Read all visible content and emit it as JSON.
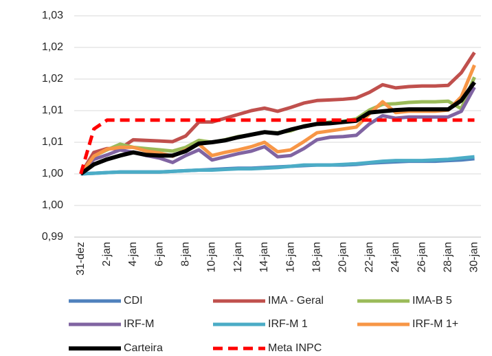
{
  "chart_data": {
    "type": "line",
    "categories": [
      "31-dez",
      null,
      "2-jan",
      null,
      "4-jan",
      null,
      "6-jan",
      null,
      "8-jan",
      null,
      "10-jan",
      null,
      "12-jan",
      null,
      "14-jan",
      null,
      "16-jan",
      null,
      "18-jan",
      null,
      "20-jan",
      null,
      "22-jan",
      null,
      "24-jan",
      null,
      "26-jan",
      null,
      "28-jan",
      null,
      "30-jan"
    ],
    "ylim": [
      0.99,
      1.025
    ],
    "yticks": [
      {
        "value": 0.99,
        "label": "0,99"
      },
      {
        "value": 0.995,
        "label": "1,00"
      },
      {
        "value": 1.0,
        "label": "1,00"
      },
      {
        "value": 1.005,
        "label": "1,01"
      },
      {
        "value": 1.01,
        "label": "1,01"
      },
      {
        "value": 1.015,
        "label": "1,02"
      },
      {
        "value": 1.02,
        "label": "1,02"
      },
      {
        "value": 1.025,
        "label": "1,03"
      }
    ],
    "grid": true,
    "legend": "bottom",
    "series": [
      {
        "name": "CDI",
        "color": "#4f81bd",
        "style": "solid",
        "values": [
          1.0,
          1.0001,
          1.0002,
          1.0003,
          1.0003,
          1.0003,
          1.0003,
          1.0004,
          1.0005,
          1.0006,
          1.0007,
          1.0008,
          1.0009,
          1.0009,
          1.001,
          1.0011,
          1.0012,
          1.0013,
          1.0014,
          1.0014,
          1.0014,
          1.0015,
          1.0017,
          1.0018,
          1.0019,
          1.002,
          1.002,
          1.002,
          1.0021,
          1.0022,
          1.0024
        ]
      },
      {
        "name": "IMA - Geral",
        "color": "#c0504d",
        "style": "solid",
        "values": [
          1.0,
          1.0034,
          1.004,
          1.004,
          1.0054,
          1.0053,
          1.0052,
          1.0051,
          1.006,
          1.0082,
          1.0082,
          1.0088,
          1.0094,
          1.01,
          1.0104,
          1.0099,
          1.0105,
          1.0112,
          1.0116,
          1.0117,
          1.0118,
          1.012,
          1.0129,
          1.0141,
          1.0136,
          1.0138,
          1.0139,
          1.0139,
          1.014,
          1.016,
          1.0192
        ]
      },
      {
        "name": "IMA-B 5",
        "color": "#9bbb59",
        "style": "solid",
        "values": [
          1.0,
          1.0028,
          1.0038,
          1.0047,
          1.0042,
          1.004,
          1.0038,
          1.0036,
          1.0042,
          1.0053,
          1.005,
          1.0054,
          1.0059,
          1.0062,
          1.0066,
          1.0065,
          1.0068,
          1.0076,
          1.0079,
          1.0082,
          1.0083,
          1.0087,
          1.0101,
          1.011,
          1.0111,
          1.0113,
          1.0114,
          1.0114,
          1.0115,
          1.0103,
          1.0153
        ]
      },
      {
        "name": "IRF-M",
        "color": "#8064a2",
        "style": "solid",
        "values": [
          1.0,
          1.0023,
          1.003,
          1.0038,
          1.0034,
          1.0029,
          1.0025,
          1.0018,
          1.0029,
          1.0038,
          1.0022,
          1.0027,
          1.0032,
          1.0036,
          1.0043,
          1.0027,
          1.0029,
          1.004,
          1.0054,
          1.0058,
          1.0059,
          1.0061,
          1.0079,
          1.0092,
          1.0088,
          1.009,
          1.009,
          1.009,
          1.009,
          1.0099,
          1.0137
        ]
      },
      {
        "name": "IRF-M 1",
        "color": "#4bacc6",
        "style": "solid",
        "values": [
          1.0,
          1.0001,
          1.0002,
          1.0003,
          1.0003,
          1.0003,
          1.0003,
          1.0004,
          1.0005,
          1.0006,
          1.0006,
          1.0007,
          1.0008,
          1.0008,
          1.0009,
          1.001,
          1.0012,
          1.0014,
          1.0014,
          1.0014,
          1.0015,
          1.0016,
          1.0018,
          1.002,
          1.0021,
          1.0021,
          1.0021,
          1.0022,
          1.0023,
          1.0025,
          1.0027
        ]
      },
      {
        "name": "IRF-M 1+",
        "color": "#f79646",
        "style": "solid",
        "values": [
          1.0,
          1.0028,
          1.0039,
          1.0042,
          1.0042,
          1.0036,
          1.0033,
          1.0028,
          1.0038,
          1.0047,
          1.0029,
          1.0034,
          1.0038,
          1.0043,
          1.005,
          1.0035,
          1.0038,
          1.0051,
          1.0065,
          1.0068,
          1.0071,
          1.0074,
          1.0095,
          1.0114,
          1.0097,
          1.0099,
          1.0099,
          1.0099,
          1.0101,
          1.0122,
          1.0172
        ]
      },
      {
        "name": "Carteira",
        "color": "#000000",
        "style": "solid",
        "values": [
          1.0,
          1.0015,
          1.0023,
          1.0029,
          1.0034,
          1.003,
          1.0029,
          1.0029,
          1.0036,
          1.0048,
          1.005,
          1.0053,
          1.0058,
          1.0062,
          1.0066,
          1.0064,
          1.007,
          1.0075,
          1.0079,
          1.008,
          1.0082,
          1.0084,
          1.0097,
          1.0099,
          1.0101,
          1.0102,
          1.0102,
          1.0102,
          1.0102,
          1.0116,
          1.0145
        ]
      },
      {
        "name": "Meta INPC",
        "color": "#ff0000",
        "style": "dashed",
        "values": [
          1.0,
          1.0071,
          1.0085,
          1.0085,
          1.0085,
          1.0085,
          1.0085,
          1.0085,
          1.0085,
          1.0085,
          1.0085,
          1.0085,
          1.0085,
          1.0085,
          1.0085,
          1.0085,
          1.0085,
          1.0085,
          1.0085,
          1.0085,
          1.0085,
          1.0085,
          1.0085,
          1.0085,
          1.0085,
          1.0085,
          1.0085,
          1.0085,
          1.0085,
          1.0085,
          1.0085
        ]
      }
    ]
  }
}
